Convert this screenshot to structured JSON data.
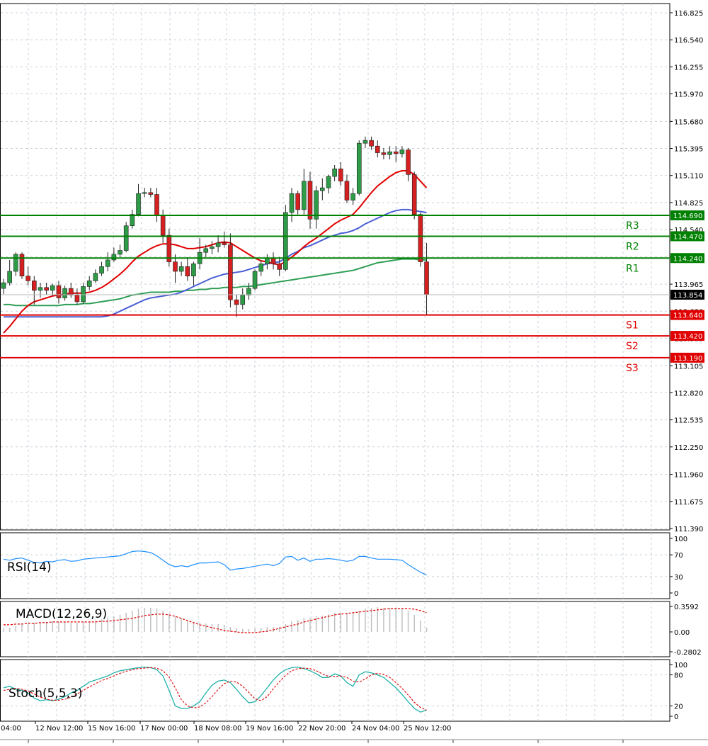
{
  "chart_data": {
    "type": "candlestick",
    "main": {
      "price_axis_ticks": [
        "116.825",
        "116.540",
        "116.255",
        "115.970",
        "115.680",
        "115.395",
        "115.110",
        "114.825",
        "114.540",
        "114.255",
        "113.965",
        "113.680",
        "113.395",
        "113.105",
        "112.820",
        "112.535",
        "112.250",
        "111.960",
        "111.675",
        "111.390"
      ],
      "ylim": [
        111.39,
        116.825
      ],
      "current_price": "113.854",
      "levels": [
        {
          "name": "R3",
          "value": "114.690",
          "kind": "resistance",
          "color": "#008000"
        },
        {
          "name": "R2",
          "value": "114.470",
          "kind": "resistance",
          "color": "#008000"
        },
        {
          "name": "R1",
          "value": "114.240",
          "kind": "resistance",
          "color": "#008000"
        },
        {
          "name": "S1",
          "value": "113.640",
          "kind": "support",
          "color": "#e00000"
        },
        {
          "name": "S2",
          "value": "113.420",
          "kind": "support",
          "color": "#e00000"
        },
        {
          "name": "S3",
          "value": "113.190",
          "kind": "support",
          "color": "#e00000"
        }
      ],
      "candles": [
        {
          "o": 113.92,
          "h": 114.02,
          "l": 113.86,
          "c": 113.98
        },
        {
          "o": 113.98,
          "h": 114.22,
          "l": 113.95,
          "c": 114.1
        },
        {
          "o": 114.1,
          "h": 114.3,
          "l": 114.05,
          "c": 114.28
        },
        {
          "o": 114.28,
          "h": 114.3,
          "l": 114.02,
          "c": 114.05
        },
        {
          "o": 114.05,
          "h": 114.15,
          "l": 113.95,
          "c": 114.0
        },
        {
          "o": 114.0,
          "h": 114.05,
          "l": 113.75,
          "c": 113.9
        },
        {
          "o": 113.9,
          "h": 113.98,
          "l": 113.82,
          "c": 113.93
        },
        {
          "o": 113.93,
          "h": 113.98,
          "l": 113.85,
          "c": 113.9
        },
        {
          "o": 113.9,
          "h": 113.97,
          "l": 113.84,
          "c": 113.95
        },
        {
          "o": 113.95,
          "h": 114.0,
          "l": 113.76,
          "c": 113.82
        },
        {
          "o": 113.82,
          "h": 113.95,
          "l": 113.79,
          "c": 113.92
        },
        {
          "o": 113.92,
          "h": 113.98,
          "l": 113.82,
          "c": 113.85
        },
        {
          "o": 113.85,
          "h": 113.92,
          "l": 113.75,
          "c": 113.78
        },
        {
          "o": 113.78,
          "h": 113.98,
          "l": 113.76,
          "c": 113.94
        },
        {
          "o": 113.94,
          "h": 114.05,
          "l": 113.9,
          "c": 114.0
        },
        {
          "o": 114.0,
          "h": 114.12,
          "l": 113.98,
          "c": 114.08
        },
        {
          "o": 114.08,
          "h": 114.2,
          "l": 114.05,
          "c": 114.15
        },
        {
          "o": 114.15,
          "h": 114.3,
          "l": 114.1,
          "c": 114.22
        },
        {
          "o": 114.22,
          "h": 114.35,
          "l": 114.2,
          "c": 114.28
        },
        {
          "o": 114.28,
          "h": 114.38,
          "l": 114.25,
          "c": 114.32
        },
        {
          "o": 114.32,
          "h": 114.62,
          "l": 114.3,
          "c": 114.58
        },
        {
          "o": 114.58,
          "h": 114.75,
          "l": 114.55,
          "c": 114.7
        },
        {
          "o": 114.7,
          "h": 115.02,
          "l": 114.68,
          "c": 114.92
        },
        {
          "o": 114.92,
          "h": 114.98,
          "l": 114.88,
          "c": 114.93
        },
        {
          "o": 114.93,
          "h": 114.98,
          "l": 114.88,
          "c": 114.91
        },
        {
          "o": 114.91,
          "h": 114.98,
          "l": 114.62,
          "c": 114.69
        },
        {
          "o": 114.69,
          "h": 114.75,
          "l": 114.4,
          "c": 114.48
        },
        {
          "o": 114.48,
          "h": 114.55,
          "l": 114.15,
          "c": 114.2
        },
        {
          "o": 114.2,
          "h": 114.28,
          "l": 113.98,
          "c": 114.1
        },
        {
          "o": 114.1,
          "h": 114.2,
          "l": 114.05,
          "c": 114.15
        },
        {
          "o": 114.15,
          "h": 114.25,
          "l": 114.0,
          "c": 114.05
        },
        {
          "o": 114.05,
          "h": 114.2,
          "l": 113.95,
          "c": 114.18
        },
        {
          "o": 114.18,
          "h": 114.45,
          "l": 114.12,
          "c": 114.3
        },
        {
          "o": 114.3,
          "h": 114.38,
          "l": 114.25,
          "c": 114.34
        },
        {
          "o": 114.34,
          "h": 114.42,
          "l": 114.28,
          "c": 114.36
        },
        {
          "o": 114.36,
          "h": 114.48,
          "l": 114.3,
          "c": 114.4
        },
        {
          "o": 114.4,
          "h": 114.52,
          "l": 114.35,
          "c": 114.38
        },
        {
          "o": 114.38,
          "h": 114.5,
          "l": 113.72,
          "c": 113.8
        },
        {
          "o": 113.8,
          "h": 113.85,
          "l": 113.62,
          "c": 113.75
        },
        {
          "o": 113.75,
          "h": 113.92,
          "l": 113.7,
          "c": 113.85
        },
        {
          "o": 113.85,
          "h": 113.98,
          "l": 113.8,
          "c": 113.92
        },
        {
          "o": 113.92,
          "h": 114.12,
          "l": 113.9,
          "c": 114.1
        },
        {
          "o": 114.1,
          "h": 114.22,
          "l": 114.05,
          "c": 114.18
        },
        {
          "o": 114.18,
          "h": 114.28,
          "l": 114.12,
          "c": 114.24
        },
        {
          "o": 114.24,
          "h": 114.3,
          "l": 114.12,
          "c": 114.18
        },
        {
          "o": 114.18,
          "h": 114.25,
          "l": 114.05,
          "c": 114.12
        },
        {
          "o": 114.12,
          "h": 114.8,
          "l": 114.1,
          "c": 114.72
        },
        {
          "o": 114.72,
          "h": 114.98,
          "l": 114.62,
          "c": 114.92
        },
        {
          "o": 114.92,
          "h": 114.95,
          "l": 114.7,
          "c": 114.75
        },
        {
          "o": 114.75,
          "h": 115.18,
          "l": 114.7,
          "c": 115.05
        },
        {
          "o": 115.05,
          "h": 115.15,
          "l": 114.55,
          "c": 114.65
        },
        {
          "o": 114.65,
          "h": 115.0,
          "l": 114.55,
          "c": 114.95
        },
        {
          "o": 114.95,
          "h": 115.08,
          "l": 114.85,
          "c": 114.98
        },
        {
          "o": 114.98,
          "h": 115.12,
          "l": 114.92,
          "c": 115.1
        },
        {
          "o": 115.1,
          "h": 115.22,
          "l": 115.05,
          "c": 115.18
        },
        {
          "o": 115.18,
          "h": 115.25,
          "l": 115.0,
          "c": 115.05
        },
        {
          "o": 115.05,
          "h": 115.12,
          "l": 114.82,
          "c": 114.85
        },
        {
          "o": 114.85,
          "h": 114.98,
          "l": 114.8,
          "c": 114.92
        },
        {
          "o": 114.92,
          "h": 115.48,
          "l": 114.9,
          "c": 115.45
        },
        {
          "o": 115.45,
          "h": 115.52,
          "l": 115.4,
          "c": 115.48
        },
        {
          "o": 115.48,
          "h": 115.52,
          "l": 115.38,
          "c": 115.42
        },
        {
          "o": 115.42,
          "h": 115.48,
          "l": 115.3,
          "c": 115.35
        },
        {
          "o": 115.35,
          "h": 115.4,
          "l": 115.28,
          "c": 115.33
        },
        {
          "o": 115.33,
          "h": 115.42,
          "l": 115.28,
          "c": 115.36
        },
        {
          "o": 115.36,
          "h": 115.42,
          "l": 115.25,
          "c": 115.34
        },
        {
          "o": 115.34,
          "h": 115.42,
          "l": 115.3,
          "c": 115.38
        },
        {
          "o": 115.38,
          "h": 115.4,
          "l": 115.05,
          "c": 115.12
        },
        {
          "o": 115.12,
          "h": 115.15,
          "l": 114.65,
          "c": 114.7
        },
        {
          "o": 114.7,
          "h": 114.72,
          "l": 114.15,
          "c": 114.2
        },
        {
          "o": 114.2,
          "h": 114.4,
          "l": 113.64,
          "c": 113.854
        }
      ],
      "ma_fast": {
        "color": "#e00000",
        "values": [
          113.45,
          113.52,
          113.6,
          113.68,
          113.74,
          113.78,
          113.8,
          113.82,
          113.84,
          113.85,
          113.86,
          113.87,
          113.87,
          113.87,
          113.88,
          113.9,
          113.93,
          113.97,
          114.02,
          114.07,
          114.13,
          114.2,
          114.26,
          114.3,
          114.34,
          114.37,
          114.39,
          114.39,
          114.38,
          114.36,
          114.34,
          114.34,
          114.35,
          114.36,
          114.38,
          114.4,
          114.41,
          114.4,
          114.36,
          114.32,
          114.28,
          114.24,
          114.21,
          114.2,
          114.18,
          114.17,
          114.2,
          114.25,
          114.3,
          114.36,
          114.41,
          114.45,
          114.5,
          114.55,
          114.6,
          114.64,
          114.67,
          114.7,
          114.77,
          114.85,
          114.93,
          115.0,
          115.05,
          115.1,
          115.14,
          115.16,
          115.16,
          115.12,
          115.05,
          114.98
        ]
      },
      "ma_mid": {
        "color": "#4a5fd4",
        "values": [
          113.62,
          113.62,
          113.62,
          113.62,
          113.62,
          113.62,
          113.62,
          113.62,
          113.62,
          113.62,
          113.62,
          113.62,
          113.62,
          113.62,
          113.62,
          113.62,
          113.62,
          113.63,
          113.65,
          113.68,
          113.71,
          113.74,
          113.77,
          113.8,
          113.82,
          113.83,
          113.84,
          113.85,
          113.86,
          113.88,
          113.91,
          113.94,
          113.97,
          114.0,
          114.03,
          114.05,
          114.07,
          114.08,
          114.09,
          114.1,
          114.12,
          114.14,
          114.16,
          114.18,
          114.19,
          114.2,
          114.24,
          114.28,
          114.31,
          114.35,
          114.37,
          114.4,
          114.43,
          114.46,
          114.48,
          114.5,
          114.51,
          114.53,
          114.56,
          114.6,
          114.63,
          114.66,
          114.69,
          114.72,
          114.74,
          114.75,
          114.75,
          114.74,
          114.73,
          114.72
        ]
      },
      "ma_slow": {
        "color": "#2f9e54",
        "values": [
          113.75,
          113.75,
          113.74,
          113.74,
          113.74,
          113.74,
          113.74,
          113.74,
          113.74,
          113.74,
          113.75,
          113.75,
          113.75,
          113.76,
          113.76,
          113.77,
          113.78,
          113.79,
          113.8,
          113.81,
          113.83,
          113.85,
          113.86,
          113.87,
          113.88,
          113.88,
          113.88,
          113.88,
          113.89,
          113.89,
          113.9,
          113.9,
          113.91,
          113.91,
          113.92,
          113.92,
          113.93,
          113.93,
          113.93,
          113.94,
          113.94,
          113.95,
          113.96,
          113.97,
          113.98,
          113.99,
          114.0,
          114.01,
          114.02,
          114.03,
          114.04,
          114.05,
          114.06,
          114.07,
          114.08,
          114.09,
          114.1,
          114.11,
          114.13,
          114.15,
          114.17,
          114.19,
          114.2,
          114.21,
          114.22,
          114.23,
          114.23,
          114.23,
          114.22,
          114.22
        ]
      }
    },
    "rsi": {
      "label": "RSI(14)",
      "axis_ticks": [
        "100",
        "70",
        "30",
        "0"
      ],
      "ylim": [
        0,
        100
      ],
      "values": [
        62,
        60,
        63,
        64,
        60,
        56,
        55,
        58,
        57,
        60,
        61,
        58,
        59,
        62,
        63,
        64,
        65,
        66,
        67,
        68,
        72,
        76,
        77,
        76,
        74,
        68,
        60,
        52,
        48,
        50,
        48,
        52,
        55,
        55,
        56,
        57,
        52,
        42,
        44,
        45,
        47,
        49,
        51,
        53,
        50,
        54,
        66,
        67,
        60,
        64,
        58,
        62,
        62,
        63,
        62,
        60,
        58,
        60,
        67,
        67,
        64,
        62,
        62,
        62,
        61,
        60,
        52,
        45,
        38,
        33
      ]
    },
    "macd": {
      "label": "MACD(12,26,9)",
      "axis_ticks": [
        "0.3592",
        "0.00",
        "-0.2802"
      ],
      "ylim": [
        -0.2802,
        0.3592
      ],
      "hist": [
        0.05,
        0.06,
        0.08,
        0.1,
        0.12,
        0.13,
        0.14,
        0.14,
        0.15,
        0.14,
        0.14,
        0.13,
        0.13,
        0.14,
        0.15,
        0.16,
        0.18,
        0.2,
        0.22,
        0.24,
        0.27,
        0.3,
        0.33,
        0.34,
        0.34,
        0.33,
        0.3,
        0.26,
        0.22,
        0.19,
        0.16,
        0.14,
        0.13,
        0.12,
        0.11,
        0.11,
        0.1,
        0.07,
        0.05,
        0.04,
        0.04,
        0.05,
        0.06,
        0.07,
        0.07,
        0.07,
        0.11,
        0.15,
        0.17,
        0.2,
        0.2,
        0.22,
        0.23,
        0.25,
        0.27,
        0.27,
        0.27,
        0.27,
        0.3,
        0.33,
        0.34,
        0.35,
        0.34,
        0.34,
        0.34,
        0.33,
        0.3,
        0.24,
        0.16,
        0.06
      ],
      "signal": [
        0.1,
        0.1,
        0.11,
        0.11,
        0.12,
        0.12,
        0.13,
        0.13,
        0.14,
        0.14,
        0.14,
        0.14,
        0.14,
        0.14,
        0.14,
        0.14,
        0.15,
        0.15,
        0.16,
        0.17,
        0.18,
        0.19,
        0.21,
        0.23,
        0.24,
        0.25,
        0.25,
        0.24,
        0.22,
        0.19,
        0.16,
        0.13,
        0.1,
        0.08,
        0.06,
        0.04,
        0.02,
        0.01,
        0.0,
        -0.01,
        -0.01,
        -0.01,
        0.0,
        0.01,
        0.03,
        0.05,
        0.07,
        0.09,
        0.11,
        0.14,
        0.16,
        0.18,
        0.2,
        0.22,
        0.24,
        0.25,
        0.26,
        0.27,
        0.28,
        0.29,
        0.3,
        0.31,
        0.32,
        0.33,
        0.33,
        0.33,
        0.33,
        0.32,
        0.3,
        0.27
      ]
    },
    "stoch": {
      "label": "Stoch(5,5,3)",
      "axis_ticks": [
        "100",
        "80",
        "20",
        "0"
      ],
      "ylim": [
        0,
        100
      ],
      "k": [
        55,
        58,
        52,
        50,
        45,
        35,
        30,
        32,
        30,
        33,
        38,
        45,
        50,
        58,
        66,
        70,
        74,
        78,
        84,
        88,
        90,
        92,
        94,
        95,
        94,
        90,
        78,
        50,
        20,
        15,
        15,
        20,
        28,
        45,
        60,
        68,
        70,
        65,
        52,
        38,
        26,
        28,
        40,
        55,
        70,
        82,
        90,
        94,
        95,
        92,
        88,
        82,
        75,
        75,
        82,
        78,
        65,
        58,
        80,
        86,
        84,
        80,
        75,
        65,
        55,
        42,
        28,
        15,
        8,
        12
      ],
      "d": [
        50,
        52,
        54,
        52,
        49,
        43,
        37,
        33,
        31,
        31,
        33,
        37,
        43,
        50,
        57,
        63,
        69,
        73,
        78,
        83,
        87,
        90,
        92,
        93,
        94,
        93,
        88,
        76,
        55,
        32,
        20,
        16,
        18,
        26,
        38,
        52,
        63,
        68,
        66,
        58,
        46,
        34,
        30,
        38,
        53,
        67,
        79,
        88,
        92,
        93,
        92,
        88,
        82,
        77,
        77,
        78,
        75,
        68,
        66,
        72,
        80,
        83,
        81,
        75,
        65,
        54,
        41,
        27,
        17,
        12
      ]
    },
    "x_tick_labels": [
      "v 04:00",
      "12 Nov 12:00",
      "15 Nov 16:00",
      "17 Nov 00:00",
      "18 Nov 08:00",
      "19 Nov 16:00",
      "22 Nov 20:00",
      "24 Nov 04:00",
      "25 Nov 12:00"
    ]
  },
  "colors": {
    "bull_candle": "#2e9b47",
    "bear_candle": "#d42020",
    "grid": "#c8d0d8",
    "rsi_line": "#1e90ff",
    "macd_hist": "#c0c0c0",
    "macd_signal": "#e00000",
    "stoch_k": "#20b2aa",
    "stoch_d": "#e00000"
  }
}
